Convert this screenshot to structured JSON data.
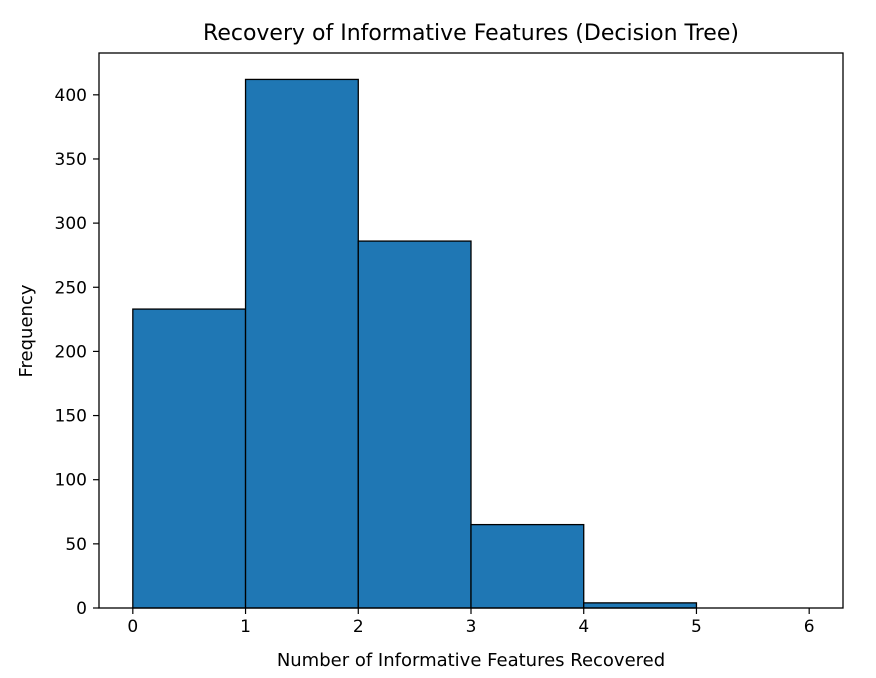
{
  "chart_data": {
    "type": "bar",
    "title": "Recovery of Informative Features (Decision Tree)",
    "xlabel": "Number of Informative Features Recovered",
    "ylabel": "Frequency",
    "bins": [
      {
        "start": 0,
        "end": 1,
        "value": 233
      },
      {
        "start": 1,
        "end": 2,
        "value": 412
      },
      {
        "start": 2,
        "end": 3,
        "value": 286
      },
      {
        "start": 3,
        "end": 4,
        "value": 65
      },
      {
        "start": 4,
        "end": 5,
        "value": 4
      },
      {
        "start": 5,
        "end": 6,
        "value": 0
      }
    ],
    "xlim": [
      -0.3,
      6.3
    ],
    "ylim": [
      0,
      432.6
    ],
    "xticks": [
      "0",
      "1",
      "2",
      "3",
      "4",
      "5",
      "6"
    ],
    "yticks": [
      "0",
      "50",
      "100",
      "150",
      "200",
      "250",
      "300",
      "350",
      "400"
    ],
    "bar_color": "#1f77b4",
    "edge_color": "#000000",
    "grid": false,
    "legend": "none"
  }
}
